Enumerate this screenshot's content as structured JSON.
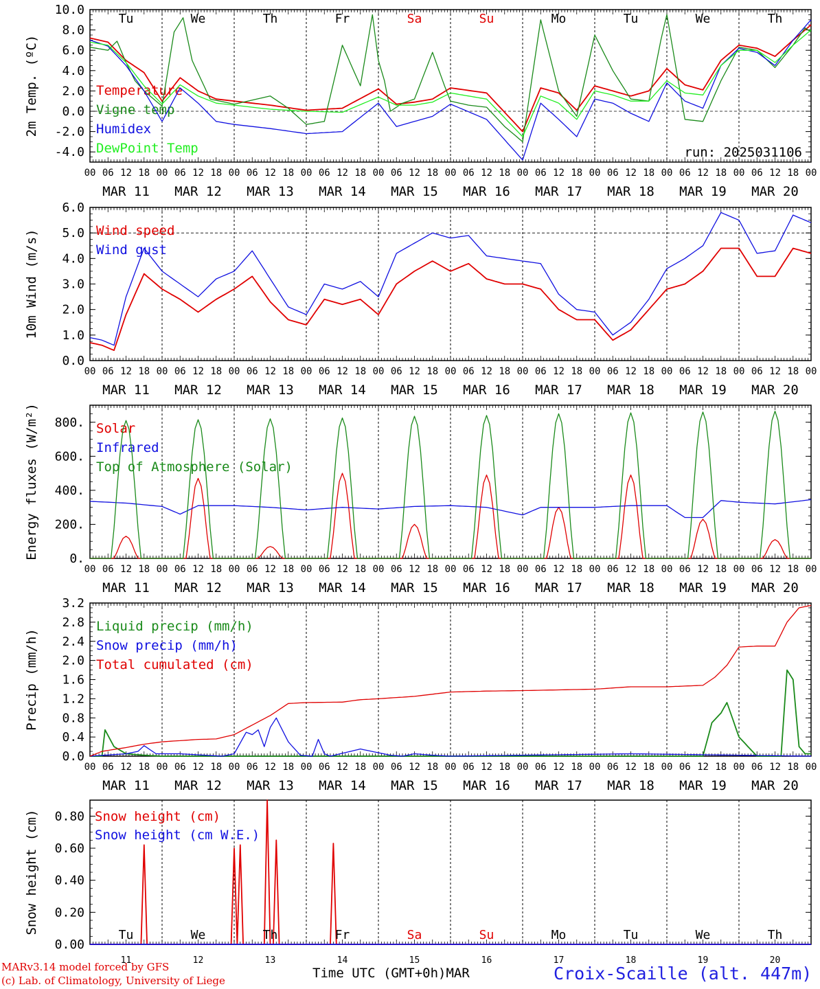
{
  "run_label": "run: 2025031106",
  "footer": {
    "model_line": "MARv3.14 model forced by GFS",
    "lab_line": "(c) Lab. of Climatology, University of Liege",
    "x_title": "Time UTC (GMT+0h)",
    "x_unit": "MAR",
    "station": "Croix-Scaille (alt. 447m)"
  },
  "colors": {
    "red": "#e00000",
    "green": "#1a8a1a",
    "blue": "#1010e0",
    "lightgreen": "#22ee22",
    "axis": "#000000"
  },
  "days": {
    "hour_ticks": [
      "00",
      "06",
      "12",
      "18"
    ],
    "final_tick": "00",
    "dates": [
      "MAR 11",
      "MAR 12",
      "MAR 13",
      "MAR 14",
      "MAR 15",
      "MAR 16",
      "MAR 17",
      "MAR 18",
      "MAR 19",
      "MAR 20"
    ],
    "weekdays": [
      "Tu",
      "We",
      "Th",
      "Fr",
      "Sa",
      "Su",
      "Mo",
      "Tu",
      "We",
      "Th"
    ],
    "weekday_colors": [
      "#000000",
      "#000000",
      "#000000",
      "#000000",
      "#e00000",
      "#e00000",
      "#000000",
      "#000000",
      "#000000",
      "#000000"
    ],
    "day_numbers": [
      "11",
      "12",
      "13",
      "14",
      "15",
      "16",
      "17",
      "18",
      "19",
      "20"
    ]
  },
  "chart_data": [
    {
      "type": "line",
      "ylabel": "2m Temp. (ºC)",
      "ylim": [
        -5,
        10
      ],
      "yticks": [
        "-4.0",
        "-2.0",
        "0.0",
        "2.0",
        "4.0",
        "6.0",
        "8.0",
        "10.0"
      ],
      "ytick_values": [
        -4,
        -2,
        0,
        2,
        4,
        6,
        8,
        10
      ],
      "zero_line": 0,
      "x_unit": "hours since MAR 11 00 UTC",
      "series": [
        {
          "name": "Temperature",
          "color": "#e00000",
          "x": [
            0,
            6,
            12,
            18,
            24,
            30,
            36,
            42,
            48,
            60,
            72,
            84,
            96,
            102,
            108,
            114,
            120,
            132,
            144,
            150,
            156,
            162,
            168,
            174,
            180,
            186,
            192,
            198,
            204,
            210,
            216,
            222,
            228,
            234,
            240
          ],
          "y": [
            7.2,
            6.8,
            5.0,
            3.8,
            1.0,
            3.3,
            2.0,
            1.2,
            1.0,
            0.6,
            0.1,
            0.3,
            2.2,
            0.7,
            0.9,
            1.2,
            2.3,
            1.8,
            -2.0,
            2.3,
            1.8,
            0.1,
            2.5,
            2.0,
            1.5,
            2.0,
            4.2,
            2.6,
            2.1,
            5.0,
            6.5,
            6.2,
            5.4,
            7.0,
            8.5
          ]
        },
        {
          "name": "Vigne temp",
          "color": "#1a8a1a",
          "x": [
            0,
            6,
            9,
            12,
            15,
            18,
            24,
            28,
            31,
            34,
            40,
            48,
            60,
            66,
            72,
            78,
            84,
            90,
            94,
            96,
            98,
            100,
            104,
            108,
            114,
            118,
            120,
            126,
            132,
            138,
            144,
            150,
            156,
            162,
            168,
            174,
            180,
            186,
            190,
            192,
            198,
            204,
            210,
            216,
            222,
            228,
            234,
            238,
            240
          ],
          "y": [
            6.3,
            6.0,
            6.9,
            4.8,
            3.0,
            2.0,
            0.5,
            7.8,
            9.2,
            5.0,
            1.2,
            0.7,
            1.5,
            0.3,
            -1.3,
            -1.0,
            6.5,
            2.5,
            9.5,
            5.0,
            3.0,
            0.0,
            0.8,
            1.2,
            5.8,
            2.5,
            1.0,
            0.6,
            0.4,
            -1.5,
            -3.0,
            9.0,
            2.0,
            -0.5,
            7.5,
            4.0,
            1.2,
            1.0,
            7.0,
            9.5,
            -0.8,
            -1.0,
            3.0,
            6.3,
            6.0,
            4.3,
            6.5,
            8.2,
            7.8
          ]
        },
        {
          "name": "Humidex",
          "color": "#1010e0",
          "x": [
            0,
            6,
            12,
            18,
            24,
            30,
            36,
            42,
            48,
            60,
            72,
            84,
            96,
            102,
            108,
            114,
            120,
            132,
            144,
            150,
            156,
            162,
            168,
            174,
            180,
            186,
            192,
            198,
            204,
            210,
            216,
            222,
            228,
            234,
            240
          ],
          "y": [
            7.0,
            6.4,
            4.5,
            2.0,
            -1.0,
            2.3,
            0.8,
            -1.0,
            -1.3,
            -1.7,
            -2.2,
            -2.0,
            0.8,
            -1.5,
            -1.0,
            -0.5,
            0.7,
            -0.8,
            -4.8,
            0.8,
            -0.8,
            -2.5,
            1.2,
            0.8,
            -0.2,
            -1.0,
            2.8,
            1.0,
            0.3,
            4.5,
            6.2,
            5.8,
            4.5,
            7.0,
            9.0
          ]
        },
        {
          "name": "DewPoint Temp",
          "color": "#22ee22",
          "x": [
            0,
            6,
            12,
            18,
            24,
            30,
            36,
            42,
            48,
            60,
            72,
            84,
            96,
            102,
            108,
            114,
            120,
            132,
            144,
            150,
            156,
            162,
            168,
            174,
            180,
            186,
            192,
            198,
            204,
            210,
            216,
            222,
            228,
            234,
            240
          ],
          "y": [
            6.8,
            6.5,
            4.8,
            2.5,
            0.7,
            2.6,
            1.5,
            0.8,
            0.6,
            0.2,
            0.0,
            -0.1,
            1.4,
            0.6,
            0.6,
            0.9,
            1.8,
            1.2,
            -2.5,
            1.5,
            0.8,
            -0.8,
            2.0,
            1.6,
            1.0,
            1.0,
            3.0,
            1.8,
            1.6,
            4.5,
            6.0,
            6.0,
            4.8,
            6.5,
            8.0
          ]
        }
      ]
    },
    {
      "type": "line",
      "ylabel": "10m Wind (m/s)",
      "ylim": [
        0,
        6
      ],
      "yticks": [
        "0.0",
        "1.0",
        "2.0",
        "3.0",
        "4.0",
        "5.0",
        "6.0"
      ],
      "ytick_values": [
        0,
        1,
        2,
        3,
        4,
        5,
        6
      ],
      "ref_line": 5,
      "x_unit": "hours since MAR 11 00 UTC",
      "series": [
        {
          "name": "Wind speed",
          "color": "#e00000",
          "x": [
            0,
            4,
            8,
            12,
            18,
            24,
            30,
            36,
            42,
            48,
            54,
            60,
            66,
            72,
            78,
            84,
            90,
            96,
            102,
            108,
            114,
            120,
            126,
            132,
            138,
            144,
            150,
            156,
            162,
            168,
            174,
            180,
            186,
            192,
            198,
            204,
            210,
            216,
            222,
            228,
            234,
            240
          ],
          "y": [
            0.7,
            0.6,
            0.4,
            1.8,
            3.4,
            2.8,
            2.4,
            1.9,
            2.4,
            2.8,
            3.3,
            2.3,
            1.6,
            1.4,
            2.4,
            2.2,
            2.4,
            1.8,
            3.0,
            3.5,
            3.9,
            3.5,
            3.8,
            3.2,
            3.0,
            3.0,
            2.8,
            2.0,
            1.6,
            1.6,
            0.8,
            1.2,
            2.0,
            2.8,
            3.0,
            3.5,
            4.4,
            4.4,
            3.3,
            3.3,
            4.4,
            4.2
          ]
        },
        {
          "name": "Wind gust",
          "color": "#1010e0",
          "x": [
            0,
            4,
            8,
            12,
            18,
            24,
            30,
            36,
            42,
            48,
            54,
            60,
            66,
            72,
            78,
            84,
            90,
            96,
            102,
            108,
            114,
            120,
            126,
            132,
            138,
            144,
            150,
            156,
            162,
            168,
            174,
            180,
            186,
            192,
            198,
            204,
            210,
            216,
            222,
            228,
            234,
            240
          ],
          "y": [
            0.9,
            0.8,
            0.6,
            2.5,
            4.4,
            3.5,
            3.0,
            2.5,
            3.2,
            3.5,
            4.3,
            3.2,
            2.1,
            1.8,
            3.0,
            2.8,
            3.1,
            2.5,
            4.2,
            4.6,
            5.0,
            4.8,
            4.9,
            4.1,
            4.0,
            3.9,
            3.8,
            2.6,
            2.0,
            1.9,
            1.0,
            1.5,
            2.4,
            3.6,
            4.0,
            4.5,
            5.8,
            5.5,
            4.2,
            4.3,
            5.7,
            5.4
          ]
        }
      ]
    },
    {
      "type": "line",
      "ylabel": "Energy fluxes (W/m²)",
      "ylim": [
        0,
        900
      ],
      "yticks": [
        "0.",
        "200.",
        "400.",
        "600.",
        "800."
      ],
      "ytick_values": [
        0,
        200,
        400,
        600,
        800
      ],
      "x_unit": "hours since MAR 11 00 UTC",
      "series": [
        {
          "name": "Solar",
          "color": "#e00000",
          "daily_peak": [
            130,
            470,
            70,
            500,
            200,
            490,
            300,
            490,
            230,
            110
          ]
        },
        {
          "name": "Infrared",
          "color": "#1010e0",
          "x": [
            0,
            12,
            24,
            30,
            36,
            48,
            60,
            72,
            84,
            96,
            108,
            120,
            132,
            144,
            150,
            156,
            168,
            180,
            192,
            198,
            204,
            210,
            216,
            228,
            240
          ],
          "y": [
            335,
            325,
            305,
            260,
            310,
            310,
            300,
            285,
            300,
            290,
            305,
            310,
            300,
            255,
            300,
            300,
            300,
            310,
            310,
            240,
            240,
            340,
            330,
            320,
            345
          ]
        },
        {
          "name": "Top of Atmosphere (Solar)",
          "color": "#1a8a1a",
          "daily_peak": [
            810,
            815,
            820,
            825,
            835,
            840,
            850,
            855,
            860,
            865
          ]
        }
      ]
    },
    {
      "type": "line",
      "ylabel": "Precip (mm/h)",
      "ylim": [
        0,
        3.2
      ],
      "yticks": [
        "0.0",
        "0.4",
        "0.8",
        "1.2",
        "1.6",
        "2.0",
        "2.4",
        "2.8",
        "3.2"
      ],
      "ytick_values": [
        0,
        0.4,
        0.8,
        1.2,
        1.6,
        2.0,
        2.4,
        2.8,
        3.2
      ],
      "x_unit": "hours since MAR 11 00 UTC",
      "series": [
        {
          "name": "Liquid precip (mm/h)",
          "color": "#1a8a1a",
          "x": [
            0,
            4,
            5,
            8,
            12,
            18,
            24,
            48,
            120,
            192,
            204,
            207,
            210,
            212,
            216,
            222,
            228,
            230,
            232,
            234,
            236,
            238,
            240
          ],
          "y": [
            0,
            0,
            0.55,
            0.2,
            0.05,
            0.02,
            0,
            0,
            0,
            0,
            0,
            0.7,
            0.9,
            1.12,
            0.4,
            0,
            0,
            0,
            1.8,
            1.6,
            0.2,
            0.05,
            0.05
          ]
        },
        {
          "name": "Snow precip (mm/h)",
          "color": "#1010e0",
          "x": [
            0,
            12,
            16,
            18,
            22,
            30,
            44,
            48,
            52,
            54,
            56,
            58,
            60,
            62,
            66,
            70,
            74,
            76,
            78,
            80,
            90,
            100,
            104,
            108,
            114,
            120,
            180,
            240
          ],
          "y": [
            0,
            0.05,
            0.1,
            0.22,
            0.05,
            0.05,
            0,
            0.05,
            0.5,
            0.45,
            0.55,
            0.2,
            0.6,
            0.8,
            0.3,
            0.02,
            0,
            0.35,
            0.05,
            0,
            0.15,
            0.02,
            0,
            0.05,
            0.02,
            0,
            0.05,
            0
          ]
        },
        {
          "name": "Total cumulated (cm)",
          "color": "#e00000",
          "x": [
            0,
            4,
            12,
            18,
            24,
            36,
            42,
            48,
            54,
            60,
            66,
            72,
            84,
            90,
            96,
            108,
            120,
            132,
            144,
            168,
            180,
            192,
            204,
            208,
            212,
            216,
            222,
            228,
            232,
            236,
            240
          ],
          "y": [
            0,
            0.1,
            0.18,
            0.25,
            0.3,
            0.35,
            0.36,
            0.45,
            0.65,
            0.85,
            1.1,
            1.12,
            1.13,
            1.18,
            1.2,
            1.25,
            1.34,
            1.36,
            1.37,
            1.4,
            1.45,
            1.45,
            1.48,
            1.65,
            1.9,
            2.28,
            2.3,
            2.3,
            2.8,
            3.1,
            3.15
          ]
        }
      ]
    },
    {
      "type": "line",
      "ylabel": "Snow height (cm)",
      "ylim": [
        0,
        0.9
      ],
      "yticks": [
        "0.00",
        "0.20",
        "0.40",
        "0.60",
        "0.80"
      ],
      "ytick_values": [
        0,
        0.2,
        0.4,
        0.6,
        0.8
      ],
      "x_unit": "hours since MAR 11 00 UTC",
      "series": [
        {
          "name": "Snow height (cm)",
          "color": "#e00000",
          "x": [
            0,
            17,
            18,
            19,
            47,
            48,
            49,
            50,
            51,
            52,
            58,
            59,
            60,
            61,
            62,
            63,
            64,
            80,
            81,
            82,
            240
          ],
          "y": [
            0,
            0,
            0.62,
            0,
            0,
            0.6,
            0,
            0.62,
            0,
            0,
            0,
            0.9,
            0,
            0,
            0.65,
            0,
            0,
            0,
            0.63,
            0,
            0
          ]
        },
        {
          "name": "Snow height (cm W.E.)",
          "color": "#1010e0",
          "x": [
            0,
            240
          ],
          "y": [
            0,
            0
          ]
        }
      ]
    }
  ]
}
